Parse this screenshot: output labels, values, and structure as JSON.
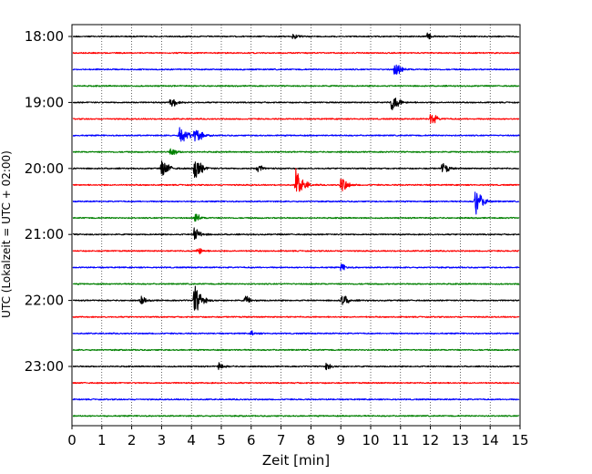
{
  "chart_data": {
    "type": "line",
    "subtype": "helicorder",
    "xlabel": "Zeit  [min]",
    "ylabel": "UTC (Lokalzeit = UTC + 02:00)",
    "xlim": [
      0,
      15
    ],
    "x_ticks": [
      0,
      1,
      2,
      3,
      4,
      5,
      6,
      7,
      8,
      9,
      10,
      11,
      12,
      13,
      14,
      15
    ],
    "y_tick_labels": [
      "18:00",
      "19:00",
      "20:00",
      "21:00",
      "22:00",
      "23:00"
    ],
    "y_tick_rows": [
      0,
      4,
      8,
      12,
      16,
      20
    ],
    "vertical_grid": "dotted",
    "colors": [
      "#000000",
      "#ff0000",
      "#0000ff",
      "#008000"
    ],
    "rows": [
      {
        "time": "18:00",
        "color": "#000000",
        "events": [
          {
            "x": 7.4,
            "amp": 0.5
          },
          {
            "x": 11.9,
            "amp": 0.5
          }
        ]
      },
      {
        "time": "18:15",
        "color": "#ff0000",
        "events": []
      },
      {
        "time": "18:30",
        "color": "#0000ff",
        "events": [
          {
            "x": 10.8,
            "amp": 1.3
          }
        ]
      },
      {
        "time": "18:45",
        "color": "#008000",
        "events": []
      },
      {
        "time": "19:00",
        "color": "#000000",
        "events": [
          {
            "x": 3.3,
            "amp": 1.0
          },
          {
            "x": 10.7,
            "amp": 1.8
          }
        ]
      },
      {
        "time": "19:15",
        "color": "#ff0000",
        "events": [
          {
            "x": 12.0,
            "amp": 1.1
          }
        ]
      },
      {
        "time": "19:30",
        "color": "#0000ff",
        "events": [
          {
            "x": 3.6,
            "amp": 2.2
          },
          {
            "x": 4.1,
            "amp": 1.5
          }
        ]
      },
      {
        "time": "19:45",
        "color": "#008000",
        "events": [
          {
            "x": 3.3,
            "amp": 0.8
          }
        ]
      },
      {
        "time": "20:00",
        "color": "#000000",
        "events": [
          {
            "x": 3.0,
            "amp": 1.8
          },
          {
            "x": 4.1,
            "amp": 2.5
          },
          {
            "x": 6.2,
            "amp": 0.7
          },
          {
            "x": 12.4,
            "amp": 1.0
          }
        ]
      },
      {
        "time": "20:15",
        "color": "#ff0000",
        "events": [
          {
            "x": 7.5,
            "amp": 2.9
          },
          {
            "x": 9.0,
            "amp": 1.5
          }
        ]
      },
      {
        "time": "20:30",
        "color": "#0000ff",
        "events": [
          {
            "x": 13.5,
            "amp": 2.8
          }
        ]
      },
      {
        "time": "20:45",
        "color": "#008000",
        "events": [
          {
            "x": 4.1,
            "amp": 0.8
          }
        ]
      },
      {
        "time": "21:00",
        "color": "#000000",
        "events": [
          {
            "x": 4.1,
            "amp": 1.2
          }
        ]
      },
      {
        "time": "21:15",
        "color": "#ff0000",
        "events": [
          {
            "x": 4.2,
            "amp": 0.7
          }
        ]
      },
      {
        "time": "21:30",
        "color": "#0000ff",
        "events": [
          {
            "x": 9.0,
            "amp": 0.6
          }
        ]
      },
      {
        "time": "21:45",
        "color": "#008000",
        "events": []
      },
      {
        "time": "22:00",
        "color": "#000000",
        "events": [
          {
            "x": 2.3,
            "amp": 0.7
          },
          {
            "x": 4.1,
            "amp": 3.0
          },
          {
            "x": 5.8,
            "amp": 0.7
          },
          {
            "x": 9.0,
            "amp": 1.3
          }
        ]
      },
      {
        "time": "22:15",
        "color": "#ff0000",
        "events": []
      },
      {
        "time": "22:30",
        "color": "#0000ff",
        "events": [
          {
            "x": 6.0,
            "amp": 0.4
          }
        ]
      },
      {
        "time": "22:45",
        "color": "#008000",
        "events": []
      },
      {
        "time": "23:00",
        "color": "#000000",
        "events": [
          {
            "x": 4.9,
            "amp": 0.6
          },
          {
            "x": 8.5,
            "amp": 0.6
          }
        ]
      },
      {
        "time": "23:15",
        "color": "#ff0000",
        "events": []
      },
      {
        "time": "23:30",
        "color": "#0000ff",
        "events": []
      },
      {
        "time": "23:45",
        "color": "#008000",
        "events": []
      }
    ]
  }
}
